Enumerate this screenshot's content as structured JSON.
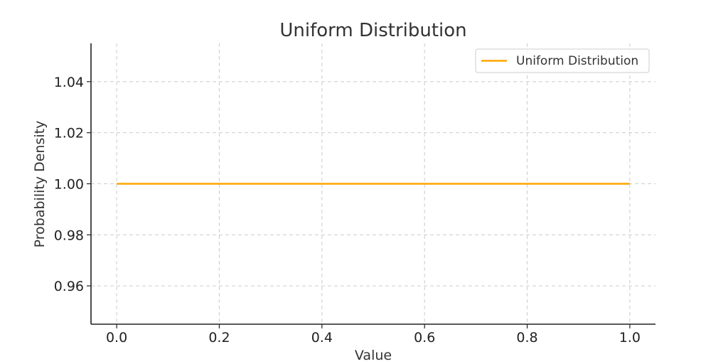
{
  "chart_data": {
    "type": "line",
    "title": "Uniform Distribution",
    "xlabel": "Value",
    "ylabel": "Probability Density",
    "xlim": [
      -0.05,
      1.05
    ],
    "ylim": [
      0.945,
      1.055
    ],
    "xticks": [
      0.0,
      0.2,
      0.4,
      0.6,
      0.8,
      1.0
    ],
    "xtick_labels": [
      "0.0",
      "0.2",
      "0.4",
      "0.6",
      "0.8",
      "1.0"
    ],
    "yticks": [
      0.96,
      0.98,
      1.0,
      1.02,
      1.04
    ],
    "ytick_labels": [
      "0.96",
      "0.98",
      "1.00",
      "1.02",
      "1.04"
    ],
    "grid": true,
    "legend_position": "top-right",
    "series": [
      {
        "name": "Uniform Distribution",
        "color": "#FFA500",
        "x": [
          0.0,
          1.0
        ],
        "y": [
          1.0,
          1.0
        ]
      }
    ]
  }
}
